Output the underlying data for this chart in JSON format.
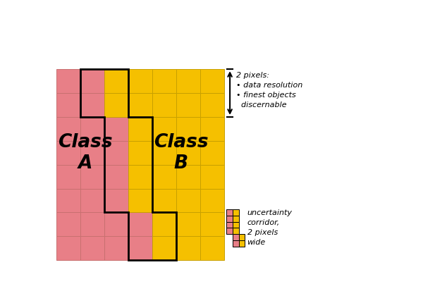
{
  "fig_width": 6.0,
  "fig_height": 4.2,
  "dpi": 100,
  "bg_color": "#ffffff",
  "color_A": "#e87f87",
  "color_B": "#f5c000",
  "grid_line_A": "#c87070",
  "grid_line_B": "#c8a000",
  "n_cols": 7,
  "n_rows": 8,
  "cell_size": 0.44,
  "ox": 0.06,
  "oy": 0.06,
  "boundary_per_row": [
    4,
    4,
    3,
    3,
    3,
    3,
    2,
    2
  ],
  "class_A_label": "Class\nA",
  "class_B_label": "Class\nB",
  "arrow_label": "2 pixels:\n• data resolution\n• finest objects\n  discernable",
  "legend_label": "uncertainty\ncorridor,\n2 pixels\nwide",
  "mini_boundary_per_row": [
    2,
    2,
    1,
    1,
    1,
    1
  ],
  "mini_n_cols": 2,
  "mini_n_rows": 6
}
